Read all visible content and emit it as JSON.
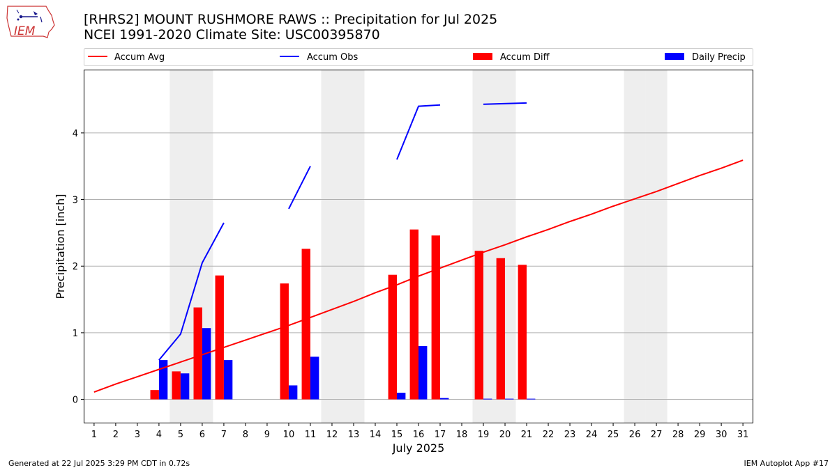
{
  "logo_text": "IEM",
  "title_line1": "[RHRS2] MOUNT RUSHMORE RAWS :: Precipitation for Jul 2025",
  "title_line2": "NCEI 1991-2020 Climate Site: USC00395870",
  "footer_left": "Generated at 22 Jul 2025 3:29 PM CDT in 0.72s",
  "footer_right": "IEM Autoplot App #17",
  "colors": {
    "accum_avg": "#ff0000",
    "accum_obs": "#0000ff",
    "accum_diff": "#ff0000",
    "daily_precip": "#0000ff",
    "weekend_shade": "#eeeeee",
    "grid": "#b0b0b0"
  },
  "chart_data": {
    "type": "bar",
    "xlabel": "July 2025",
    "ylabel": "Precipitation [inch]",
    "ylim": [
      -0.36,
      4.95
    ],
    "yticks": [
      0,
      1,
      2,
      3,
      4
    ],
    "grid": "horizontal",
    "legend_position": "top",
    "weekend_shading_days": [
      5,
      6,
      12,
      13,
      19,
      20,
      26,
      27
    ],
    "days": [
      1,
      2,
      3,
      4,
      5,
      6,
      7,
      8,
      9,
      10,
      11,
      12,
      13,
      14,
      15,
      16,
      17,
      18,
      19,
      20,
      21,
      22,
      23,
      24,
      25,
      26,
      27,
      28,
      29,
      30,
      31
    ],
    "series": [
      {
        "name": "Accum Avg",
        "type": "line",
        "x": [
          1,
          2,
          3,
          4,
          5,
          6,
          7,
          8,
          9,
          10,
          11,
          12,
          13,
          14,
          15,
          16,
          17,
          18,
          19,
          20,
          21,
          22,
          23,
          24,
          25,
          26,
          27,
          28,
          29,
          30,
          31
        ],
        "values": [
          0.11,
          0.23,
          0.34,
          0.45,
          0.56,
          0.67,
          0.78,
          0.89,
          1.0,
          1.11,
          1.23,
          1.35,
          1.47,
          1.6,
          1.72,
          1.85,
          1.97,
          2.09,
          2.21,
          2.32,
          2.44,
          2.55,
          2.67,
          2.78,
          2.9,
          3.01,
          3.12,
          3.24,
          3.36,
          3.47,
          3.59
        ]
      },
      {
        "name": "Accum Obs",
        "type": "line",
        "segments": [
          {
            "x": [
              4,
              5,
              6,
              7
            ],
            "values": [
              0.59,
              0.98,
              2.05,
              2.65
            ]
          },
          {
            "x": [
              10,
              11
            ],
            "values": [
              2.86,
              3.5
            ]
          },
          {
            "x": [
              15,
              16,
              17
            ],
            "values": [
              3.6,
              4.4,
              4.42
            ]
          },
          {
            "x": [
              19,
              21
            ],
            "values": [
              4.43,
              4.45
            ]
          }
        ]
      },
      {
        "name": "Accum Diff",
        "type": "bar",
        "x": [
          4,
          5,
          6,
          7,
          10,
          11,
          15,
          16,
          17,
          19,
          20,
          21
        ],
        "values": [
          0.14,
          0.42,
          1.38,
          1.86,
          1.74,
          2.26,
          1.87,
          2.55,
          2.46,
          2.23,
          2.12,
          2.02
        ]
      },
      {
        "name": "Daily Precip",
        "type": "bar",
        "x": [
          4,
          5,
          6,
          7,
          10,
          11,
          15,
          16,
          17,
          19,
          20,
          21
        ],
        "values": [
          0.59,
          0.39,
          1.07,
          0.59,
          0.21,
          0.64,
          0.1,
          0.8,
          0.02,
          0.01,
          0.01,
          0.01
        ]
      }
    ]
  }
}
